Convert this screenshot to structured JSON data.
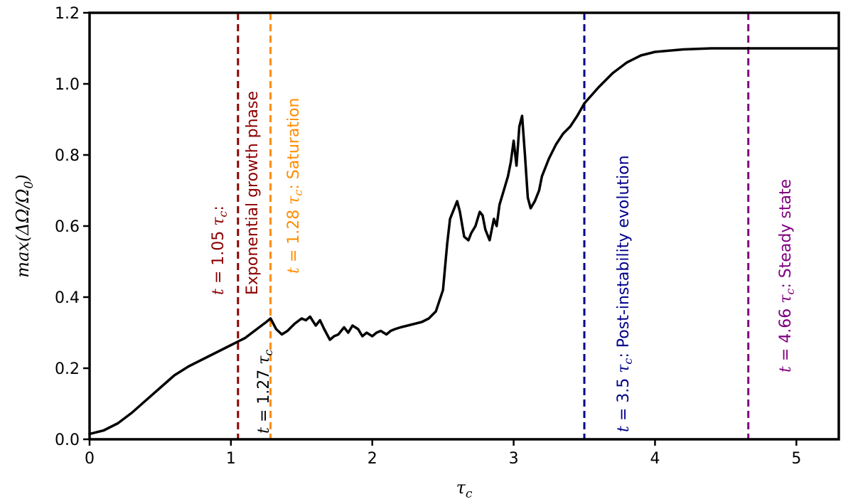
{
  "chart_data": {
    "type": "line",
    "title": "",
    "xlabel": "τ_c",
    "ylabel": "max(ΔΩ/Ω_0)",
    "xlim": [
      0,
      5.3
    ],
    "ylim": [
      0,
      1.2
    ],
    "grid": false,
    "legend": "none",
    "xticks": [
      {
        "value": 0,
        "label": "0"
      },
      {
        "value": 1,
        "label": "1"
      },
      {
        "value": 2,
        "label": "2"
      },
      {
        "value": 3,
        "label": "3"
      },
      {
        "value": 4,
        "label": "4"
      },
      {
        "value": 5,
        "label": "5"
      }
    ],
    "yticks": [
      {
        "value": 0.0,
        "label": "0.0"
      },
      {
        "value": 0.2,
        "label": "0.2"
      },
      {
        "value": 0.4,
        "label": "0.4"
      },
      {
        "value": 0.6,
        "label": "0.6"
      },
      {
        "value": 0.8,
        "label": "0.8"
      },
      {
        "value": 1.0,
        "label": "1.0"
      },
      {
        "value": 1.2,
        "label": "1.2"
      }
    ],
    "series": [
      {
        "color": "#000000",
        "x": [
          0,
          0.1,
          0.2,
          0.3,
          0.4,
          0.5,
          0.6,
          0.7,
          0.8,
          0.9,
          1.0,
          1.05,
          1.1,
          1.15,
          1.2,
          1.25,
          1.28,
          1.32,
          1.36,
          1.4,
          1.45,
          1.5,
          1.53,
          1.56,
          1.6,
          1.63,
          1.66,
          1.7,
          1.73,
          1.76,
          1.8,
          1.83,
          1.86,
          1.9,
          1.93,
          1.96,
          2.0,
          2.03,
          2.06,
          2.1,
          2.13,
          2.16,
          2.2,
          2.25,
          2.3,
          2.35,
          2.4,
          2.45,
          2.5,
          2.53,
          2.55,
          2.58,
          2.6,
          2.62,
          2.65,
          2.68,
          2.7,
          2.73,
          2.76,
          2.78,
          2.8,
          2.83,
          2.86,
          2.88,
          2.9,
          2.93,
          2.96,
          2.98,
          3.0,
          3.02,
          3.04,
          3.06,
          3.08,
          3.1,
          3.12,
          3.15,
          3.18,
          3.2,
          3.25,
          3.3,
          3.35,
          3.4,
          3.45,
          3.5,
          3.6,
          3.7,
          3.8,
          3.9,
          4.0,
          4.2,
          4.4,
          4.6,
          4.8,
          5.0,
          5.2,
          5.3
        ],
        "y": [
          0.015,
          0.025,
          0.045,
          0.075,
          0.11,
          0.145,
          0.18,
          0.205,
          0.225,
          0.245,
          0.265,
          0.275,
          0.285,
          0.3,
          0.315,
          0.33,
          0.34,
          0.31,
          0.295,
          0.305,
          0.325,
          0.34,
          0.335,
          0.345,
          0.32,
          0.335,
          0.31,
          0.28,
          0.29,
          0.295,
          0.315,
          0.3,
          0.32,
          0.31,
          0.29,
          0.3,
          0.29,
          0.3,
          0.305,
          0.295,
          0.305,
          0.31,
          0.315,
          0.32,
          0.325,
          0.33,
          0.34,
          0.36,
          0.42,
          0.55,
          0.62,
          0.65,
          0.67,
          0.64,
          0.57,
          0.56,
          0.58,
          0.6,
          0.64,
          0.63,
          0.59,
          0.56,
          0.62,
          0.6,
          0.66,
          0.7,
          0.74,
          0.78,
          0.84,
          0.77,
          0.88,
          0.91,
          0.8,
          0.68,
          0.65,
          0.67,
          0.7,
          0.74,
          0.79,
          0.83,
          0.86,
          0.88,
          0.91,
          0.945,
          0.99,
          1.03,
          1.06,
          1.08,
          1.09,
          1.097,
          1.1,
          1.1,
          1.1,
          1.1,
          1.1,
          1.1
        ]
      }
    ],
    "vlines": [
      {
        "x": 1.05,
        "color": "#8b0000"
      },
      {
        "x": 1.28,
        "color": "#ff8c00"
      },
      {
        "x": 3.5,
        "color": "#00008b"
      },
      {
        "x": 4.66,
        "color": "#800080"
      }
    ],
    "annotations": [
      {
        "t_prefix": "t",
        "eq": " = 1.05 ",
        "tau": "τ",
        "sub": "c",
        "suffix": ":",
        "color": "#8b0000"
      },
      {
        "text": "Exponential growth phase",
        "color": "#8b0000"
      },
      {
        "t_prefix": "t",
        "eq": " = 1.28 ",
        "tau": "τ",
        "sub": "c",
        "suffix": ": Saturation",
        "color": "#ff8c00"
      },
      {
        "t_prefix": "t",
        "eq": " = 1.27 ",
        "tau": "τ",
        "sub": "c",
        "suffix": "",
        "color": "#000000"
      },
      {
        "t_prefix": "t",
        "eq": " = 3.5 ",
        "tau": "τ",
        "sub": "c",
        "suffix": ": Post-instability evolution",
        "color": "#00008b"
      },
      {
        "t_prefix": "t",
        "eq": " = 4.66 ",
        "tau": "τ",
        "sub": "c",
        "suffix": ": Steady state",
        "color": "#800080"
      }
    ]
  }
}
